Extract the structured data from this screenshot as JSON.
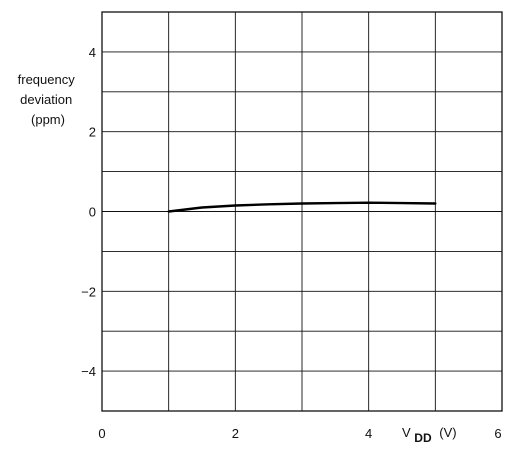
{
  "chart_data": {
    "type": "line",
    "title": "",
    "ylabel_lines": [
      "frequency",
      "deviation",
      "(ppm)"
    ],
    "xlabel_main": "V",
    "xlabel_sub": "DD",
    "xlabel_unit": "(V)",
    "xlim": [
      0,
      6
    ],
    "ylim": [
      -5,
      5
    ],
    "x_ticks": [
      {
        "value": 0,
        "label": "0"
      },
      {
        "value": 2,
        "label": "2"
      },
      {
        "value": 4,
        "label": "4"
      },
      {
        "value": 6,
        "label": "6"
      }
    ],
    "y_ticks": [
      {
        "value": 4,
        "label": "4"
      },
      {
        "value": 2,
        "label": "2"
      },
      {
        "value": 0,
        "label": "0"
      },
      {
        "value": -2,
        "label": "−2"
      },
      {
        "value": -4,
        "label": "−4"
      }
    ],
    "x_grid": [
      1,
      2,
      3,
      4,
      5
    ],
    "y_grid": [
      -4,
      -3,
      -2,
      -1,
      0,
      1,
      2,
      3,
      4
    ],
    "grid": true,
    "series": [
      {
        "x": [
          1.0,
          1.5,
          2.0,
          2.5,
          3.0,
          3.5,
          4.0,
          4.5,
          5.0
        ],
        "y": [
          0.0,
          0.1,
          0.15,
          0.18,
          0.2,
          0.21,
          0.22,
          0.21,
          0.2
        ]
      }
    ],
    "colors": {
      "line": "#000000",
      "grid": "#111111",
      "text": "#111111"
    }
  }
}
